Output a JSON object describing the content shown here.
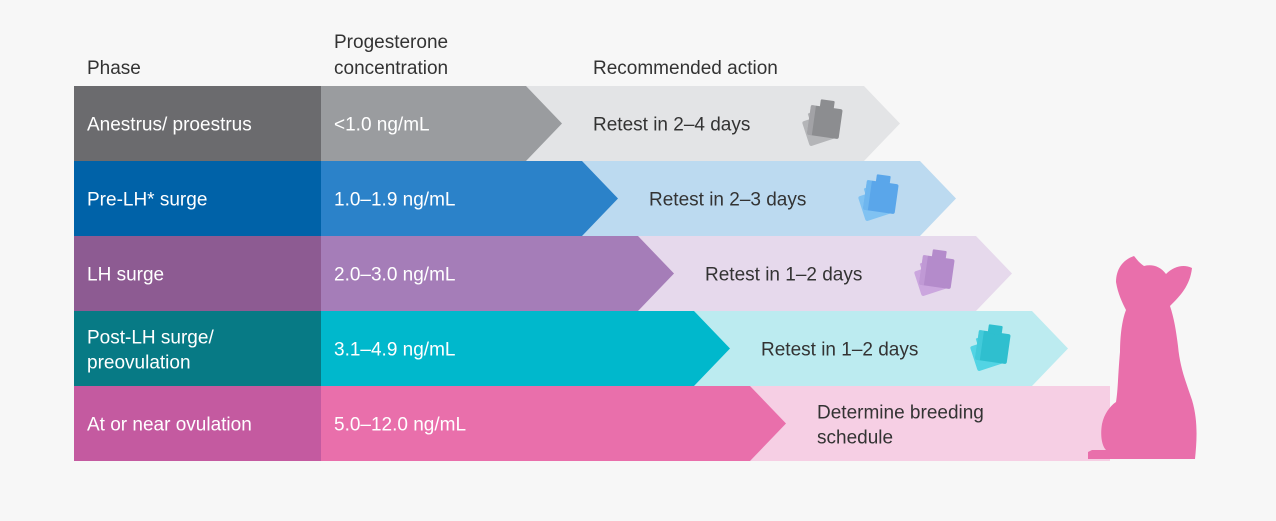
{
  "headers": {
    "phase": "Phase",
    "concentration_line1": "Progesterone",
    "concentration_line2": "concentration",
    "action": "Recommended action"
  },
  "rows": [
    {
      "phase": [
        "Anestrus/ proestrus"
      ],
      "concentration": "<1.0 ng/mL",
      "action": [
        "Retest in 2–4 days"
      ],
      "colors": {
        "phase": "#6b6b6e",
        "concentration": "#9a9c9f",
        "action": "#e3e4e6",
        "icon_back": "#b4b5b8",
        "icon_front": "#8c8d90"
      }
    },
    {
      "phase": [
        "Pre-LH* surge"
      ],
      "concentration": "1.0–1.9 ng/mL",
      "action": [
        "Retest in 2–3 days"
      ],
      "colors": {
        "phase": "#0062a8",
        "concentration": "#2b82c9",
        "action": "#bcdaf0",
        "icon_back": "#80c2f2",
        "icon_front": "#5aa6ea"
      }
    },
    {
      "phase": [
        "LH surge"
      ],
      "concentration": "2.0–3.0 ng/mL",
      "action": [
        "Retest in 1–2 days"
      ],
      "colors": {
        "phase": "#8d5b92",
        "concentration": "#a57db8",
        "action": "#e6d9ec",
        "icon_back": "#cba6de",
        "icon_front": "#b48bcb"
      }
    },
    {
      "phase": [
        "Post-LH surge/",
        "preovulation"
      ],
      "concentration": "3.1–4.9 ng/mL",
      "action": [
        "Retest in 1–2 days"
      ],
      "colors": {
        "phase": "#077a85",
        "concentration": "#00b8cc",
        "action": "#bcebf0",
        "icon_back": "#52d4e4",
        "icon_front": "#2fbfcf"
      }
    },
    {
      "phase": [
        "At or near ovulation"
      ],
      "concentration": "5.0–12.0 ng/mL",
      "action": [
        "Determine breeding",
        "schedule"
      ],
      "colors": {
        "phase": "#c45aa0",
        "concentration": "#e96fab",
        "action": "#f6cfe4",
        "icon_back": "",
        "icon_front": ""
      }
    }
  ],
  "dog_color": "#e96fab"
}
